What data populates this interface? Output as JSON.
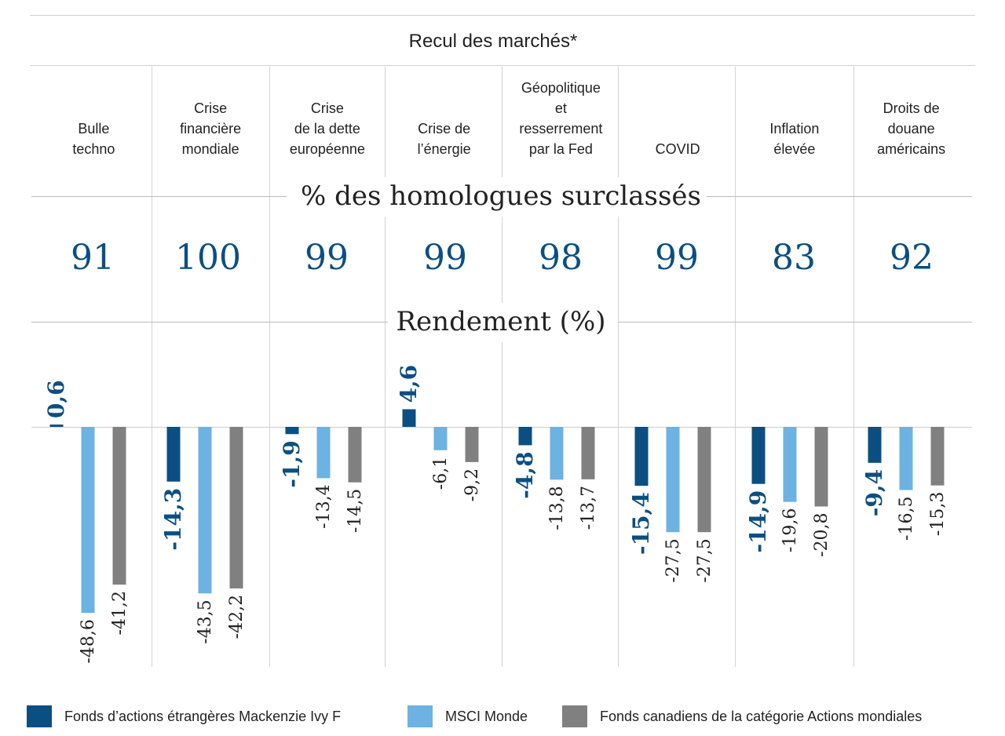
{
  "chart_data": {
    "type": "bar",
    "title": "Recul des marchés*",
    "section_outperform": "% des homologues surclassés",
    "section_return": "Rendement (%)",
    "categories": [
      [
        "Bulle",
        "techno"
      ],
      [
        "Crise",
        "financière",
        "mondiale"
      ],
      [
        "Crise",
        "de la dette",
        "européenne"
      ],
      [
        "Crise de",
        "l’énergie"
      ],
      [
        "Géopolitique",
        "et",
        "resserrement",
        "par la Fed"
      ],
      [
        "COVID"
      ],
      [
        "Inflation",
        "élevée"
      ],
      [
        "Droits de",
        "douane",
        "américains"
      ]
    ],
    "percent_outperformed": [
      91,
      100,
      99,
      99,
      98,
      99,
      83,
      92
    ],
    "series": [
      {
        "name": "Fonds d’actions étrangères Mackenzie Ivy F",
        "color": "#0b4f82",
        "values": [
          0.6,
          -14.3,
          -1.9,
          4.6,
          -4.8,
          -15.4,
          -14.9,
          -9.4
        ]
      },
      {
        "name": "MSCI Monde",
        "color": "#6cb2e2",
        "values": [
          -48.6,
          -43.5,
          -13.4,
          -6.1,
          -13.8,
          -27.5,
          -19.6,
          -16.5
        ]
      },
      {
        "name": "Fonds canadiens de la catégorie Actions mondiales",
        "color": "#808080",
        "values": [
          -41.2,
          -42.2,
          -14.5,
          -9.2,
          -13.7,
          -27.5,
          -20.8,
          -15.3
        ]
      }
    ],
    "value_labels": [
      [
        "0,6",
        "-48,6",
        "-41,2"
      ],
      [
        "-14,3",
        "-43,5",
        "-42,2"
      ],
      [
        "-1,9",
        "-13,4",
        "-14,5"
      ],
      [
        "4,6",
        "-6,1",
        "-9,2"
      ],
      [
        "-4,8",
        "-13,8",
        "-13,7"
      ],
      [
        "-15,4",
        "-27,5",
        "-27,5"
      ],
      [
        "-14,9",
        "-19,6",
        "-20,8"
      ],
      [
        "-9,4",
        "-16,5",
        "-15,3"
      ]
    ],
    "legend_position": "bottom",
    "grid": false
  }
}
